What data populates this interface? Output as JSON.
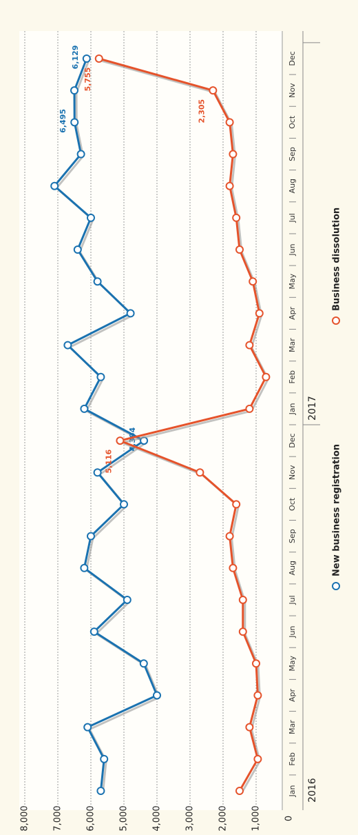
{
  "chart_data": {
    "type": "line",
    "categories": [
      "Jan",
      "Feb",
      "Mar",
      "Apr",
      "May",
      "Jun",
      "Jul",
      "Aug",
      "Sep",
      "Oct",
      "Nov",
      "Dec",
      "Jan",
      "Feb",
      "Mar",
      "Apr",
      "May",
      "Jun",
      "Jul",
      "Aug",
      "Sep",
      "Oct",
      "Nov",
      "Dec"
    ],
    "groups": [
      "2016",
      "2017"
    ],
    "series": [
      {
        "name": "New business registration",
        "color": "#1a72b0",
        "values": [
          5700,
          5600,
          6100,
          4000,
          4400,
          5900,
          4900,
          6200,
          6000,
          5000,
          5800,
          4394,
          6200,
          5700,
          6700,
          4800,
          5800,
          6400,
          6000,
          7100,
          6300,
          6495,
          6500,
          6129
        ],
        "value_labels": [
          null,
          null,
          null,
          null,
          null,
          null,
          null,
          null,
          null,
          null,
          null,
          "4,394",
          null,
          null,
          null,
          null,
          null,
          null,
          null,
          null,
          null,
          "6,495",
          null,
          "6,129"
        ]
      },
      {
        "name": "Business dissolution",
        "color": "#e5532b",
        "values": [
          1500,
          950,
          1200,
          950,
          1000,
          1400,
          1400,
          1700,
          1800,
          1600,
          2700,
          5116,
          1200,
          700,
          1200,
          900,
          1100,
          1500,
          1600,
          1800,
          1700,
          1800,
          2305,
          5755
        ],
        "value_labels": [
          null,
          null,
          null,
          null,
          null,
          null,
          null,
          null,
          null,
          null,
          null,
          "5,116",
          null,
          null,
          null,
          null,
          null,
          null,
          null,
          null,
          null,
          null,
          "2,305",
          "5,755"
        ]
      }
    ],
    "ylim": [
      0,
      8000
    ],
    "yticks": [
      0,
      {
        "value": 1000,
        "label": "1,000"
      },
      {
        "value": 2000,
        "label": "2,000"
      },
      {
        "value": 3000,
        "label": "3,000"
      },
      {
        "value": 4000,
        "label": "4,000"
      },
      {
        "value": 5000,
        "label": "5,000"
      },
      {
        "value": 6000,
        "label": "6,000"
      },
      {
        "value": 7000,
        "label": "7,000"
      },
      {
        "value": 8000,
        "label": "8,000"
      }
    ],
    "grid": true
  }
}
